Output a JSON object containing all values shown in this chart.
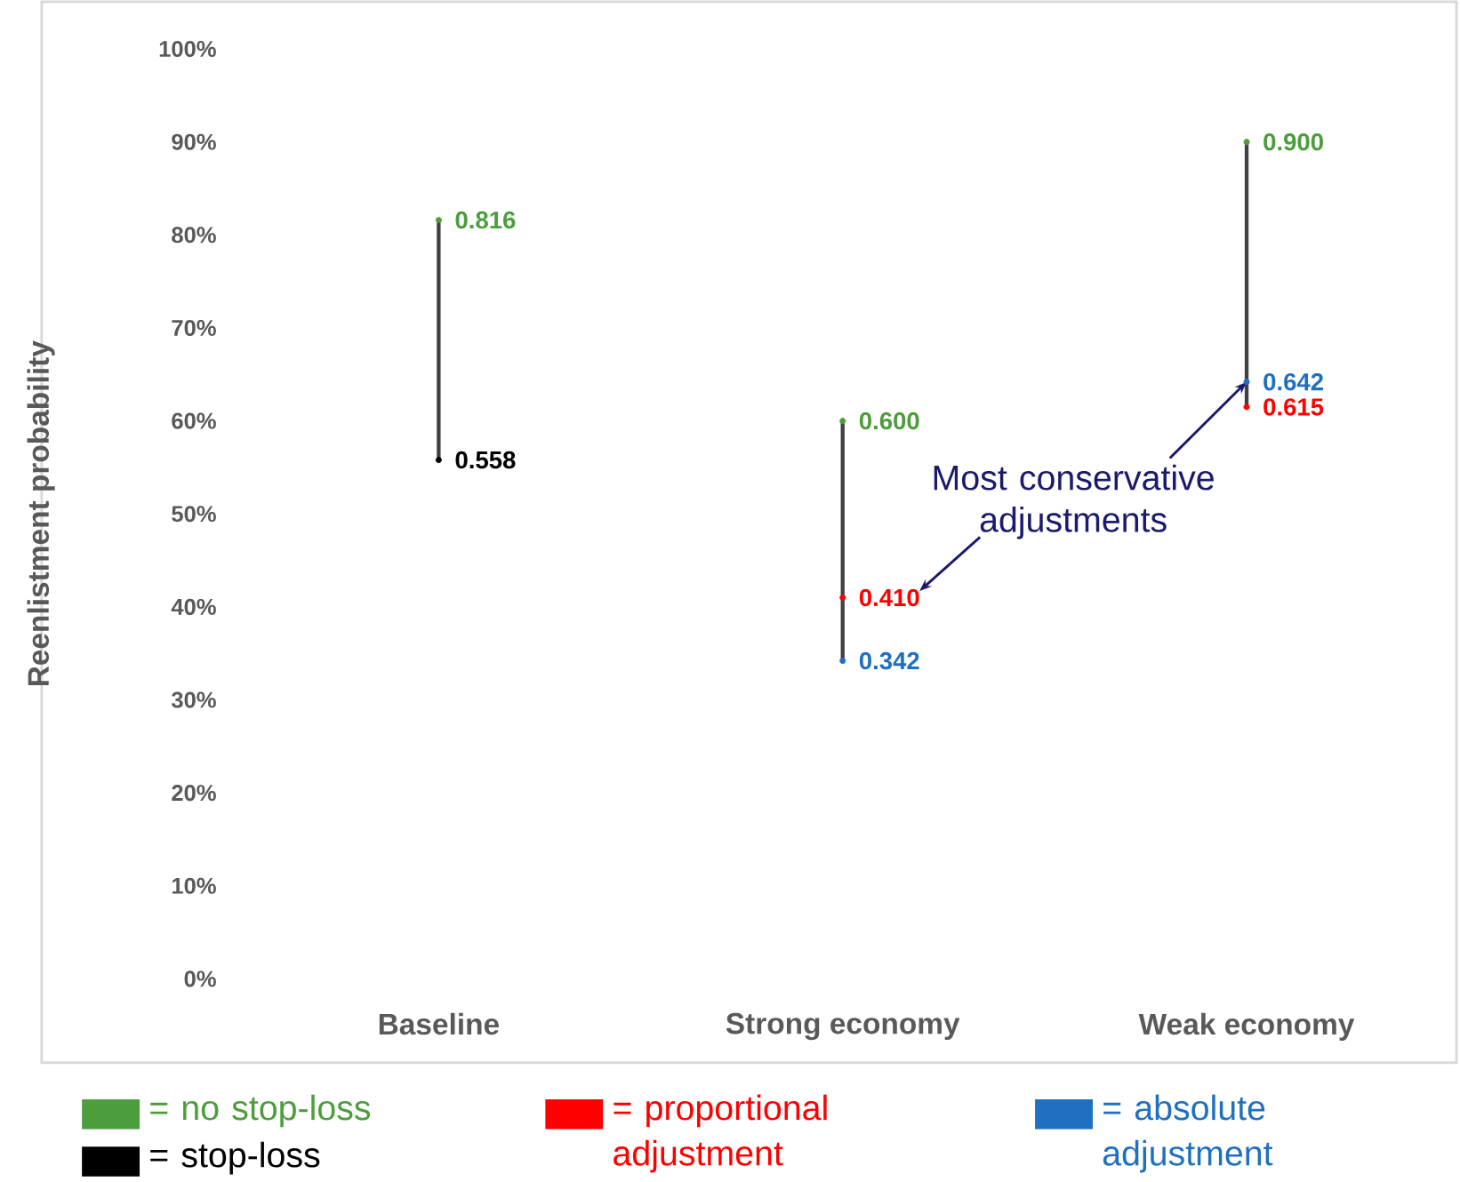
{
  "chart_data": {
    "type": "scatter",
    "categories": [
      "Baseline",
      "Strong economy",
      "Weak economy"
    ],
    "ylabel": "Reenlistment probability",
    "ylim": [
      0,
      1
    ],
    "yticks": [
      {
        "value": 0,
        "label": "0%"
      },
      {
        "value": 0.1,
        "label": "10%"
      },
      {
        "value": 0.2,
        "label": "20%"
      },
      {
        "value": 0.3,
        "label": "30%"
      },
      {
        "value": 0.4,
        "label": "40%"
      },
      {
        "value": 0.5,
        "label": "50%"
      },
      {
        "value": 0.6,
        "label": "60%"
      },
      {
        "value": 0.7,
        "label": "70%"
      },
      {
        "value": 0.8,
        "label": "80%"
      },
      {
        "value": 0.9,
        "label": "90%"
      },
      {
        "value": 1,
        "label": "100%"
      }
    ],
    "legend": "bottom",
    "marker": "circle",
    "annotations": [
      {
        "text": "Most conservative adjustments",
        "x": "Weak economy",
        "y": 0.642
      }
    ],
    "series": [
      {
        "type": "bar",
        "color": "#404040",
        "base": [
          0.558,
          0.342,
          0.615
        ],
        "values": [
          0.258,
          0.258,
          0.285
        ]
      },
      {
        "name": "= no stop-loss",
        "color": "#4c9e3c",
        "values": [
          0.816,
          0.6,
          0.9
        ],
        "value_labels": [
          "0.816",
          "0.600",
          "0.900"
        ]
      },
      {
        "name": "= stop-loss",
        "color": "#000000",
        "values": [
          0.558,
          null,
          null
        ],
        "value_labels": [
          "0.558",
          null,
          null
        ]
      },
      {
        "name": "= proportional adjustment",
        "color": "#ff0000",
        "values": [
          null,
          0.41,
          0.615
        ],
        "value_labels": [
          null,
          "0.410",
          "0.615"
        ]
      },
      {
        "name": "= absolute adjustment",
        "color": "#1f70c1",
        "values": [
          null,
          0.342,
          0.642
        ],
        "value_labels": [
          null,
          "0.342",
          "0.642"
        ]
      }
    ]
  }
}
